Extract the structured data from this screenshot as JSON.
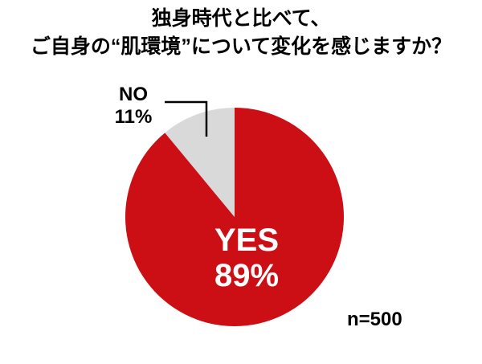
{
  "title": {
    "line1": "独身時代と比べて、",
    "line2": "ご自身の“肌環境”について変化を感じますか？"
  },
  "chart_data": {
    "type": "pie",
    "title": "独身時代と比べて、ご自身の“肌環境”について変化を感じますか？",
    "slices": [
      {
        "label": "YES",
        "value": 89,
        "color": "#CC0E15",
        "label_color": "#FFFFFF",
        "label_position": "inside"
      },
      {
        "label": "NO",
        "value": 11,
        "color": "#D9D9D9",
        "label_color": "#000000",
        "label_position": "outside-with-leader-line"
      }
    ],
    "start_angle_deg": 0,
    "small_slice_side": "counterclockwise-from-12-oclock",
    "sample_size_note": "n=500",
    "legend_position": "none"
  },
  "labels": {
    "yes_label": "YES",
    "yes_value": "89%",
    "no_label": "NO",
    "no_value": "11%",
    "sample": "n=500"
  },
  "colors": {
    "yes_slice": "#CC0E15",
    "no_slice": "#D9D9D9",
    "leader_line": "#000000",
    "title_text": "#000000",
    "yes_text": "#FFFFFF",
    "background": "#FFFFFF"
  }
}
